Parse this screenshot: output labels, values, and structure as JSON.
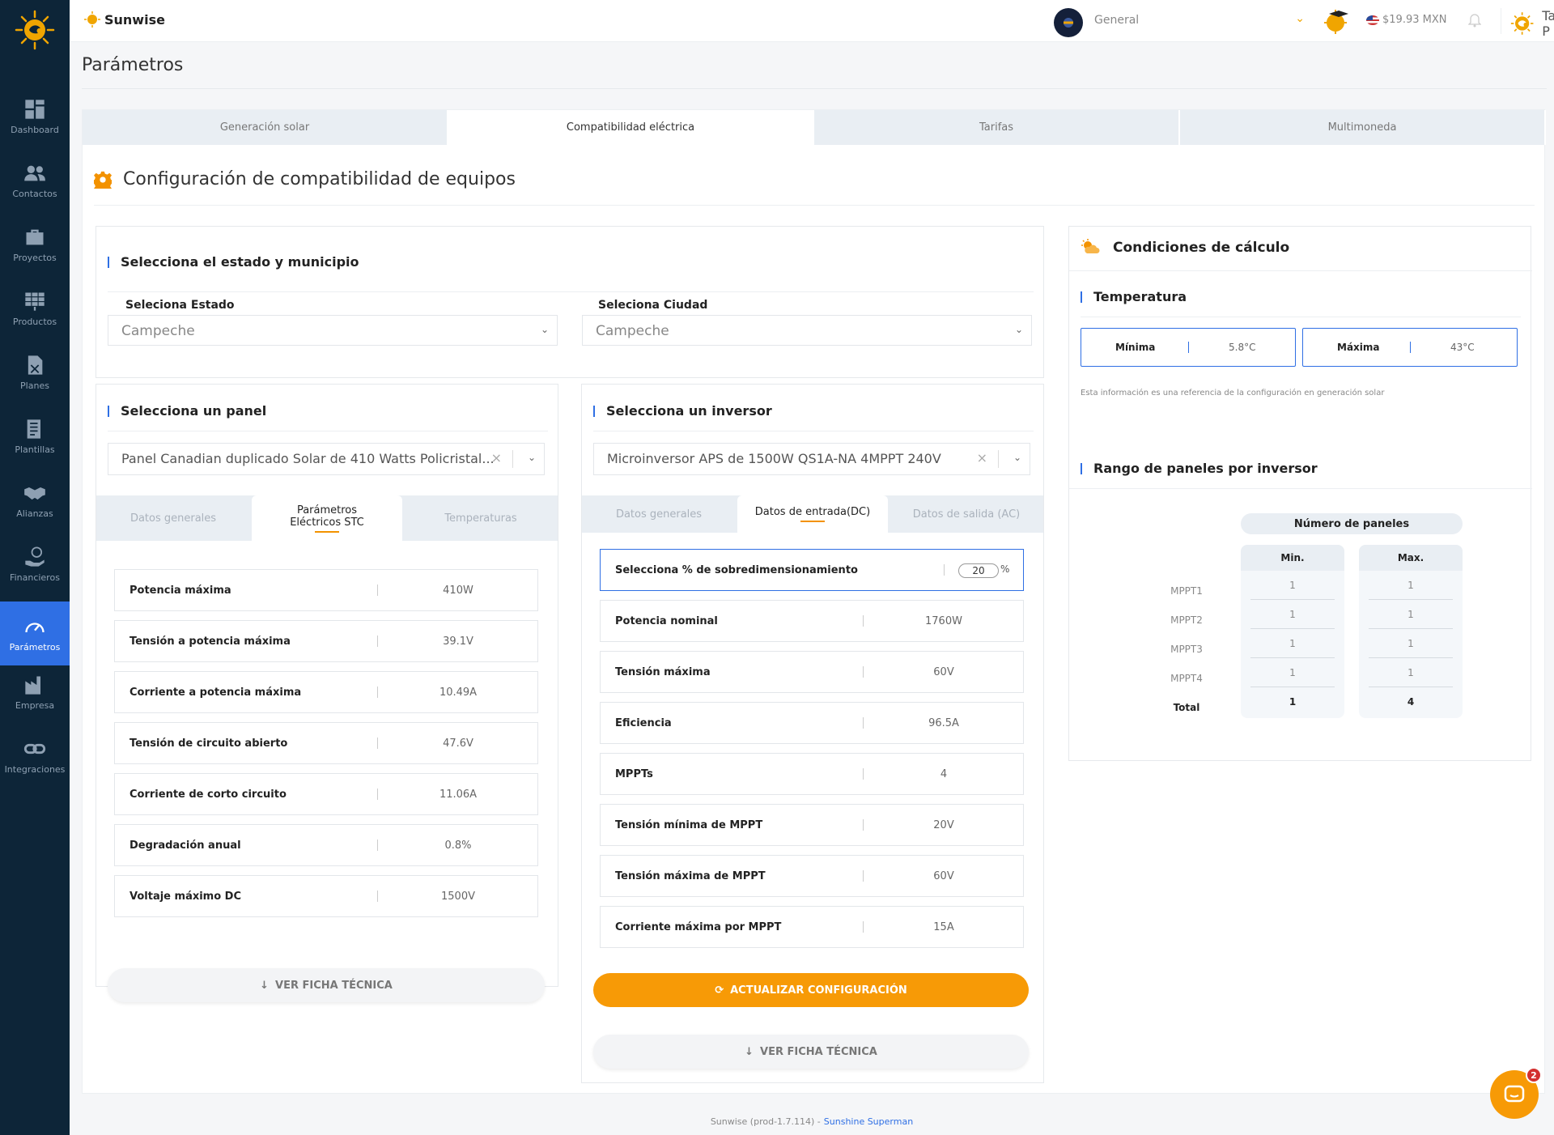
{
  "sidebar": {
    "items": [
      {
        "label": "Dashboard",
        "icon": "dashboard-icon"
      },
      {
        "label": "Contactos",
        "icon": "people-icon"
      },
      {
        "label": "Proyectos",
        "icon": "briefcase-icon"
      },
      {
        "label": "Productos",
        "icon": "solar-panel-icon"
      },
      {
        "label": "Planes",
        "icon": "document-icon"
      },
      {
        "label": "Plantillas",
        "icon": "templates-icon"
      },
      {
        "label": "Alianzas",
        "icon": "handshake-icon"
      },
      {
        "label": "Financieros",
        "icon": "money-hand-icon"
      },
      {
        "label": "Parámetros",
        "icon": "speedometer-icon"
      },
      {
        "label": "Empresa",
        "icon": "factory-icon"
      },
      {
        "label": "Integraciones",
        "icon": "link-icon"
      }
    ],
    "active_index": 8
  },
  "header": {
    "brand": "Sunwise",
    "workspace_select": "General",
    "currency": "$19.93 MXN",
    "user": "Tammy P"
  },
  "page": {
    "title": "Parámetros"
  },
  "tabs": [
    "Generación solar",
    "Compatibilidad eléctrica",
    "Tarifas",
    "Multimoneda"
  ],
  "section": {
    "title": "Configuración de compatibilidad de equipos"
  },
  "location": {
    "title": "Selecciona el estado y municipio",
    "state_label": "Seleciona Estado",
    "state_value": "Campeche",
    "city_label": "Seleciona Ciudad",
    "city_value": "Campeche"
  },
  "panel": {
    "title": "Selecciona un panel",
    "value": "Panel Canadian duplicado Solar de 410 Watts Policristal...",
    "tabs": [
      "Datos generales",
      "Parámetros Eléctricos STC",
      "Temperaturas"
    ],
    "rows": [
      {
        "k": "Potencia máxima",
        "v": "410W"
      },
      {
        "k": "Tensión a potencia máxima",
        "v": "39.1V"
      },
      {
        "k": "Corriente a potencia máxima",
        "v": "10.49A"
      },
      {
        "k": "Tensión de circuito abierto",
        "v": "47.6V"
      },
      {
        "k": "Corriente de corto circuito",
        "v": "11.06A"
      },
      {
        "k": "Degradación anual",
        "v": "0.8%"
      },
      {
        "k": "Voltaje máximo DC",
        "v": "1500V"
      }
    ],
    "ficha": "VER FICHA TÉCNICA"
  },
  "inverter": {
    "title": "Selecciona un inversor",
    "value": "Microinversor APS de 1500W QS1A-NA 4MPPT 240V",
    "tabs": [
      "Datos generales",
      "Datos de entrada(DC)",
      "Datos de salida (AC)"
    ],
    "oversize_label": "Selecciona % de sobredimensionamiento",
    "oversize_value": "20",
    "oversize_unit": "%",
    "rows": [
      {
        "k": "Potencia nominal",
        "v": "1760W"
      },
      {
        "k": "Tensión máxima",
        "v": "60V"
      },
      {
        "k": "Eficiencia",
        "v": "96.5A"
      },
      {
        "k": "MPPTs",
        "v": "4"
      },
      {
        "k": "Tensión mínima de MPPT",
        "v": "20V"
      },
      {
        "k": "Tensión máxima de MPPT",
        "v": "60V"
      },
      {
        "k": "Corriente máxima por MPPT",
        "v": "15A"
      }
    ],
    "update_btn": "ACTUALIZAR CONFIGURACIÓN",
    "ficha": "VER FICHA TÉCNICA"
  },
  "conditions": {
    "title": "Condiciones de cálculo",
    "temp_title": "Temperatura",
    "min_label": "Mínima",
    "min_value": "5.8°C",
    "max_label": "Máxima",
    "max_value": "43°C",
    "note": "Esta información es una referencia de la configuración en generación solar"
  },
  "range": {
    "title": "Rango de paneles por inversor",
    "header": "Número de paneles",
    "min_label": "Min.",
    "max_label": "Max.",
    "rows": [
      {
        "label": "MPPT1",
        "min": "1",
        "max": "1"
      },
      {
        "label": "MPPT2",
        "min": "1",
        "max": "1"
      },
      {
        "label": "MPPT3",
        "min": "1",
        "max": "1"
      },
      {
        "label": "MPPT4",
        "min": "1",
        "max": "1"
      }
    ],
    "total_label": "Total",
    "total_min": "1",
    "total_max": "4"
  },
  "footer": {
    "version": "Sunwise (prod-1.7.114) -",
    "link": "Sunshine Superman"
  },
  "chat": {
    "badge": "2"
  }
}
